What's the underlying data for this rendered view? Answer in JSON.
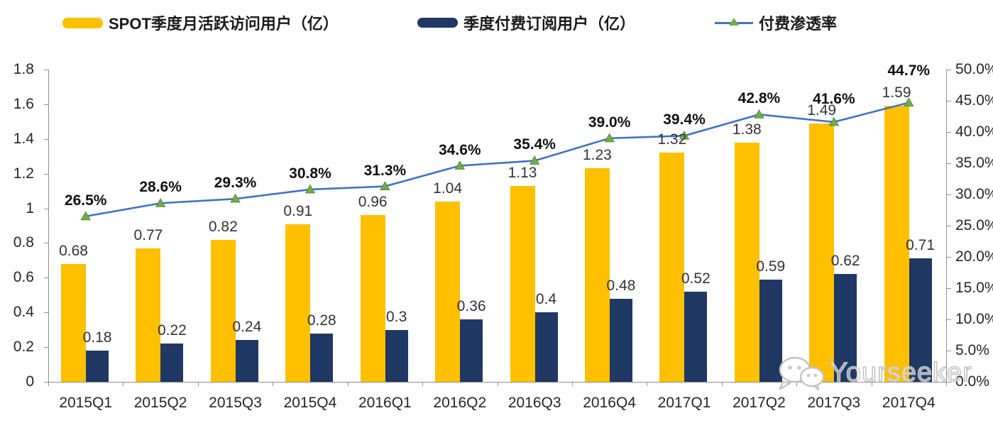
{
  "watermark": {
    "text": "Yourseeker",
    "icon": "wechat-icon"
  },
  "chart_data": {
    "type": "combo-bar-line",
    "title": "",
    "legend_position": "top",
    "grid": false,
    "categories": [
      "2015Q1",
      "2015Q2",
      "2015Q3",
      "2015Q4",
      "2016Q1",
      "2016Q2",
      "2016Q3",
      "2016Q4",
      "2017Q1",
      "2017Q2",
      "2017Q3",
      "2017Q4"
    ],
    "series": [
      {
        "name": "SPOT季度月活跃访问用户（亿）",
        "type": "bar",
        "axis": "left",
        "color": "#FFC000",
        "values": [
          0.68,
          0.77,
          0.82,
          0.91,
          0.96,
          1.04,
          1.13,
          1.23,
          1.32,
          1.38,
          1.49,
          1.59
        ],
        "labels": [
          "0.68",
          "0.77",
          "0.82",
          "0.91",
          "0.96",
          "1.04",
          "1.13",
          "1.23",
          "1.32",
          "1.38",
          "1.49",
          "1.59"
        ]
      },
      {
        "name": "季度付费订阅用户（亿）",
        "type": "bar",
        "axis": "left",
        "color": "#1F3864",
        "values": [
          0.18,
          0.22,
          0.24,
          0.28,
          0.3,
          0.36,
          0.4,
          0.48,
          0.52,
          0.59,
          0.62,
          0.71
        ],
        "labels": [
          "0.18",
          "0.22",
          "0.24",
          "0.28",
          "0.3",
          "0.36",
          "0.4",
          "0.48",
          "0.52",
          "0.59",
          "0.62",
          "0.71"
        ]
      },
      {
        "name": "付费渗透率",
        "type": "line",
        "axis": "right",
        "color": "#4472C4",
        "marker": "triangle",
        "marker_color": "#70AD47",
        "values": [
          26.5,
          28.6,
          29.3,
          30.8,
          31.3,
          34.6,
          35.4,
          39.0,
          39.4,
          42.8,
          41.6,
          44.7
        ],
        "labels": [
          "26.5%",
          "28.6%",
          "29.3%",
          "30.8%",
          "31.3%",
          "34.6%",
          "35.4%",
          "39.0%",
          "39.4%",
          "42.8%",
          "41.6%",
          "44.7%"
        ]
      }
    ],
    "left_axis": {
      "min": 0,
      "max": 1.8,
      "step": 0.2,
      "tick_labels": [
        "1.8",
        "1.6",
        "1.4",
        "1.2",
        "1",
        "0.8",
        "0.6",
        "0.4",
        "0.2",
        "0"
      ]
    },
    "right_axis": {
      "min": 0,
      "max": 50,
      "step": 5,
      "unit": "%",
      "tick_labels": [
        "50.0%",
        "45.0%",
        "40.0%",
        "35.0%",
        "30.0%",
        "25.0%",
        "20.0%",
        "15.0%",
        "10.0%",
        "5.0%",
        "0.0%"
      ]
    }
  }
}
